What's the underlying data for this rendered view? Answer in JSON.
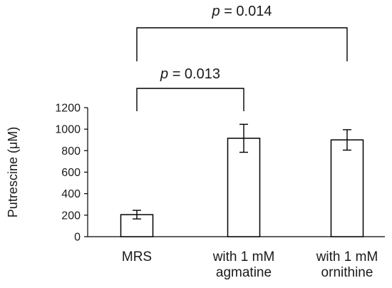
{
  "chart_data": {
    "type": "bar",
    "title": "",
    "xlabel": "",
    "ylabel": "Putrescine (μM)",
    "ylim": [
      0,
      1200
    ],
    "yticks": [
      "0",
      "200",
      "400",
      "600",
      "800",
      "1000",
      "1200"
    ],
    "categories": [
      [
        "MRS"
      ],
      [
        "with 1 mM",
        "agmatine"
      ],
      [
        "with 1 mM",
        "ornithine"
      ]
    ],
    "values": [
      205,
      915,
      900
    ],
    "error": [
      40,
      130,
      95
    ],
    "bar_fill": "#ffffff",
    "bar_stroke": "#000000",
    "grid": false,
    "legend": "none",
    "annotations": [
      {
        "label_italic": "p",
        "label_rest": " = 0.013",
        "from_category": 0,
        "to_category": 1
      },
      {
        "label_italic": "p",
        "label_rest": " = 0.014",
        "from_category": 0,
        "to_category": 2
      }
    ]
  }
}
